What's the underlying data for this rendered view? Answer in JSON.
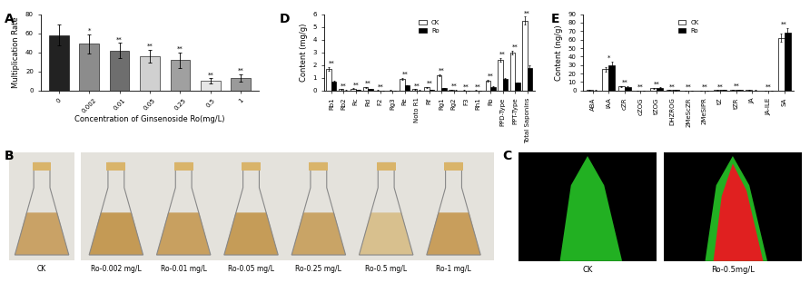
{
  "chart_data": [
    {
      "panel": "A",
      "type": "bar",
      "categories": [
        "0",
        "0.002",
        "0.01",
        "0.05",
        "0.25",
        "0.5",
        "1"
      ],
      "values": [
        58,
        49,
        42,
        36,
        32,
        10,
        13
      ],
      "errors": [
        11,
        10,
        8,
        7,
        8,
        3,
        4
      ],
      "annotations": [
        null,
        "*",
        "**",
        "**",
        "**",
        "**",
        "**"
      ],
      "colors": [
        "#222222",
        "#8c8c8c",
        "#6e6e6e",
        "#d0d0d0",
        "#a0a0a0",
        "#e6e6e6",
        "#9a9a9a"
      ],
      "xlabel": "Concentration of Ginsenoside Ro(mg/L)",
      "ylabel": "Multiplication Rate",
      "ylim": [
        0,
        80
      ],
      "yticks": [
        0,
        20,
        40,
        60,
        80
      ]
    },
    {
      "panel": "D",
      "type": "bar",
      "categories": [
        "Rb1",
        "Rb2",
        "Rc",
        "Rd",
        "F2",
        "Rg3",
        "Re",
        "Noto R1",
        "Rf",
        "Rg1",
        "Rg2",
        "F3",
        "Rh1",
        "Ro",
        "PPD-Type",
        "PPT-Type",
        "Total Saponins"
      ],
      "series": [
        {
          "name": "CK",
          "color": "#ffffff",
          "values": [
            1.7,
            0.1,
            0.15,
            0.25,
            0.02,
            0.02,
            0.9,
            0.1,
            0.25,
            1.2,
            0.05,
            0.02,
            0.02,
            0.8,
            2.4,
            3.0,
            5.5
          ],
          "errors": [
            0.15,
            0.02,
            0.03,
            0.04,
            0.01,
            0.01,
            0.08,
            0.02,
            0.04,
            0.1,
            0.01,
            0.01,
            0.01,
            0.07,
            0.15,
            0.15,
            0.3
          ]
        },
        {
          "name": "Ro",
          "color": "#000000",
          "values": [
            0.7,
            0.02,
            0.05,
            0.1,
            0.0,
            0.0,
            0.4,
            0.02,
            0.05,
            0.2,
            0.02,
            0.0,
            0.0,
            0.3,
            0.9,
            0.6,
            1.8
          ],
          "errors": [
            0.08,
            0.01,
            0.01,
            0.02,
            0.0,
            0.0,
            0.05,
            0.01,
            0.01,
            0.03,
            0.01,
            0.0,
            0.0,
            0.04,
            0.08,
            0.06,
            0.15
          ]
        }
      ],
      "annotations": [
        "**",
        "**",
        "**",
        "**",
        "**",
        null,
        "**",
        "**",
        "**",
        "**",
        "**",
        "**",
        "**",
        "**",
        "**",
        "**",
        "**"
      ],
      "ylabel": "Content (mg/g)",
      "ylim": [
        0,
        6
      ],
      "yticks": [
        0,
        1,
        2,
        3,
        4,
        5,
        6
      ],
      "legend": "upper center"
    },
    {
      "panel": "E",
      "type": "bar",
      "categories": [
        "ABA",
        "IAA",
        "cZR",
        "cZOG",
        "tZOG",
        "DHZROG",
        "2MeScZR",
        "2MeSiPR",
        "tZ",
        "tZR",
        "JA",
        "JA-ILE",
        "SA"
      ],
      "series": [
        {
          "name": "CK",
          "color": "#ffffff",
          "values": [
            0.4,
            25,
            4.7,
            0.2,
            2.5,
            0.6,
            0.1,
            0.05,
            0.4,
            1.2,
            0.4,
            0.1,
            62
          ],
          "errors": [
            0.1,
            3,
            1.0,
            0.05,
            0.4,
            0.1,
            0.02,
            0.01,
            0.1,
            0.2,
            0.1,
            0.02,
            5
          ]
        },
        {
          "name": "Ro",
          "color": "#000000",
          "values": [
            0.3,
            30,
            4.0,
            0.3,
            3.4,
            0.4,
            0.02,
            0.02,
            0.6,
            0.7,
            0.3,
            0.02,
            68
          ],
          "errors": [
            0.1,
            4,
            1.2,
            0.05,
            0.5,
            0.1,
            0.01,
            0.01,
            0.1,
            0.1,
            0.1,
            0.01,
            6
          ]
        }
      ],
      "annotations": [
        null,
        "*",
        "**",
        "**",
        "**",
        "**",
        "**",
        "**",
        "**",
        "**",
        null,
        "**",
        "**"
      ],
      "ylabel": "Content (ng/g)",
      "ylim": [
        0,
        90
      ],
      "yticks": [
        0,
        10,
        20,
        30,
        40,
        50,
        60,
        70,
        80,
        90
      ],
      "legend": "upper center"
    }
  ],
  "images": [
    {
      "panel": "B",
      "labels": [
        "CK",
        "Ro-0.002 mg/L",
        "Ro-0.01 mg/L",
        "Ro-0.05 mg/L",
        "Ro-0.25 mg/L",
        "Ro-0.5 mg/L",
        "Ro-1 mg/L"
      ]
    },
    {
      "panel": "C",
      "labels": [
        "CK",
        "Ro-0.5mg/L"
      ]
    }
  ]
}
